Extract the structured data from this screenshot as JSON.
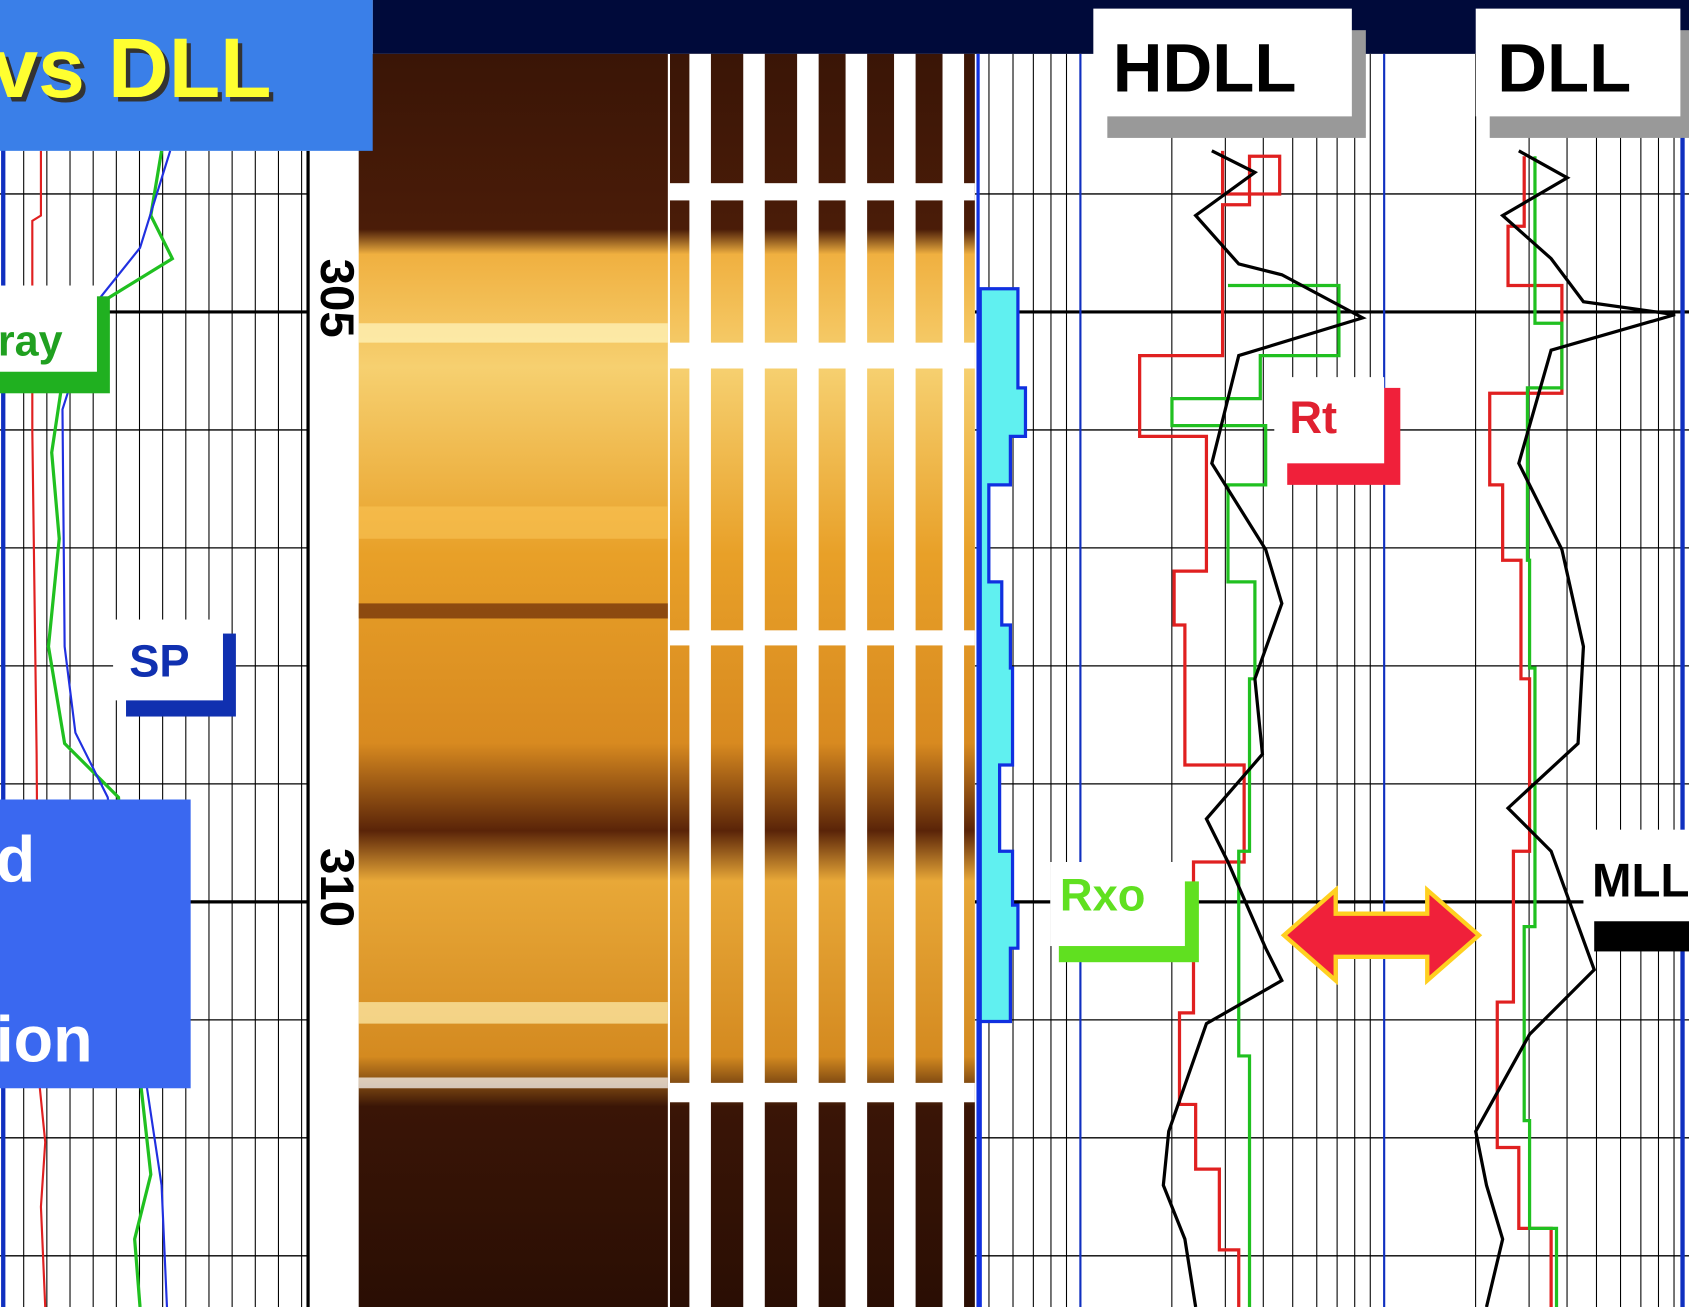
{
  "title": "vs DLL",
  "track_labels": {
    "gamma_ray": "ray",
    "sp": "SP",
    "hdll": "HDLL",
    "dll": "DLL",
    "rt": "Rt",
    "rxo": "Rxo",
    "mll": "MLL"
  },
  "depth_labels": [
    "305",
    "310"
  ],
  "callout": {
    "lines": [
      "d",
      "ion"
    ]
  }
}
